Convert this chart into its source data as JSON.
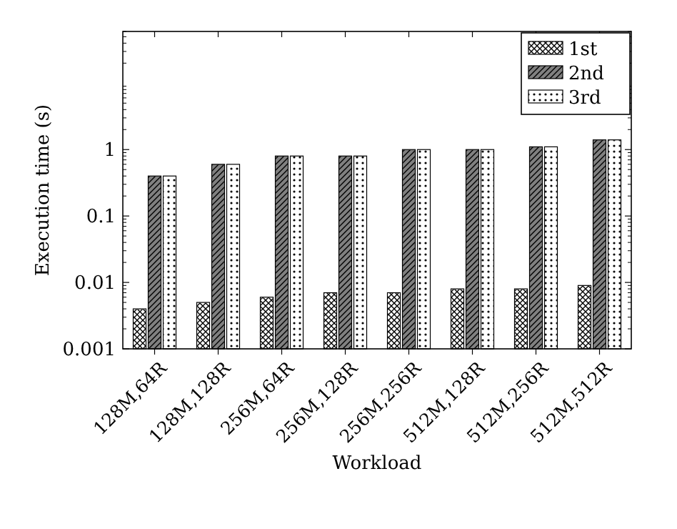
{
  "chart_data": {
    "type": "bar",
    "xlabel": "Workload",
    "ylabel": "Execution time (s)",
    "categories": [
      "128M,64R",
      "128M,128R",
      "256M,64R",
      "256M,128R",
      "256M,256R",
      "512M,128R",
      "512M,256R",
      "512M,512R"
    ],
    "series": [
      {
        "name": "1st",
        "color": "#ffffff",
        "values": [
          0.004,
          0.005,
          0.006,
          0.007,
          0.007,
          0.008,
          0.008,
          0.009
        ]
      },
      {
        "name": "2nd",
        "color": "#808080",
        "values": [
          0.4,
          0.6,
          0.8,
          0.8,
          1.0,
          1.0,
          1.1,
          1.4
        ]
      },
      {
        "name": "3rd",
        "color": "#ffffff",
        "values": [
          0.4,
          0.6,
          0.8,
          0.8,
          1.0,
          1.0,
          1.1,
          1.4
        ]
      }
    ],
    "log": "y",
    "ylim": [
      0.001,
      60
    ],
    "yticks": [
      0.001,
      0.01,
      0.1,
      1
    ],
    "grid": false,
    "legend": "top right"
  }
}
